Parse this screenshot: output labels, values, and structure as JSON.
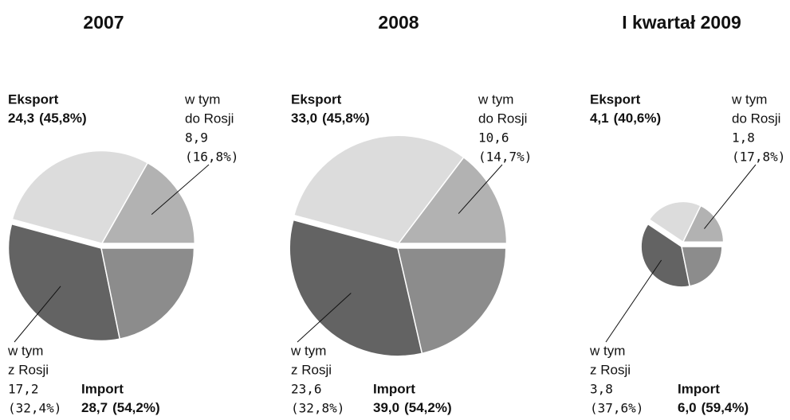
{
  "chart_data": [
    {
      "type": "pie",
      "title": "2007",
      "groups": [
        {
          "name": "Eksport",
          "value": 24.3,
          "value_label": "24,3",
          "share": 45.8,
          "share_label": "(45,8%)",
          "color": "#dcdcdc",
          "part": {
            "label": [
              "w tym",
              "do Rosji"
            ],
            "value": 8.9,
            "value_label": "8,9",
            "percent": 16.8,
            "percent_label": "(16,8%)",
            "color": "#b2b2b2"
          }
        },
        {
          "name": "Import",
          "value": 28.7,
          "value_label": "28,7",
          "share": 54.2,
          "share_label": "(54,2%)",
          "color": "#8c8c8c",
          "part": {
            "label": [
              "w tym",
              "z Rosji"
            ],
            "value": 17.2,
            "value_label": "17,2",
            "percent": 32.4,
            "percent_label": "(32,4%)",
            "color": "#636363"
          }
        }
      ]
    },
    {
      "type": "pie",
      "title": "2008",
      "groups": [
        {
          "name": "Eksport",
          "value": 33.0,
          "value_label": "33,0",
          "share": 45.8,
          "share_label": "(45,8%)",
          "color": "#dcdcdc",
          "part": {
            "label": [
              "w tym",
              "do Rosji"
            ],
            "value": 10.6,
            "value_label": "10,6",
            "percent": 14.7,
            "percent_label": "(14,7%)",
            "color": "#b2b2b2"
          }
        },
        {
          "name": "Import",
          "value": 39.0,
          "value_label": "39,0",
          "share": 54.2,
          "share_label": "(54,2%)",
          "color": "#8c8c8c",
          "part": {
            "label": [
              "w tym",
              "z Rosji"
            ],
            "value": 23.6,
            "value_label": "23,6",
            "percent": 32.8,
            "percent_label": "(32,8%)",
            "color": "#636363"
          }
        }
      ]
    },
    {
      "type": "pie",
      "title": "I kwartał 2009",
      "groups": [
        {
          "name": "Eksport",
          "value": 4.1,
          "value_label": "4,1",
          "share": 40.6,
          "share_label": "(40,6%)",
          "color": "#dcdcdc",
          "part": {
            "label": [
              "w tym",
              "do Rosji"
            ],
            "value": 1.8,
            "value_label": "1,8",
            "percent": 17.8,
            "percent_label": "(17,8%)",
            "color": "#b2b2b2"
          }
        },
        {
          "name": "Import",
          "value": 6.0,
          "value_label": "6,0",
          "share": 59.4,
          "share_label": "(59,4%)",
          "color": "#8c8c8c",
          "part": {
            "label": [
              "w tym",
              "z Rosji"
            ],
            "value": 3.8,
            "value_label": "3,8",
            "percent": 37.6,
            "percent_label": "(37,6%)",
            "color": "#636363"
          }
        }
      ]
    }
  ]
}
